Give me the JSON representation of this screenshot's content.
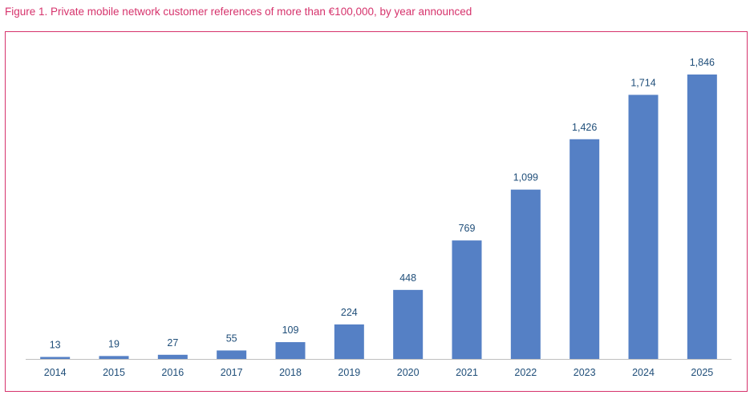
{
  "figure": {
    "title": "Figure 1. Private mobile network customer references of more than €100,000, by year announced"
  },
  "colors": {
    "bar": "#5580c5",
    "accent": "#d6336c",
    "label": "#1f4e79",
    "axis": "#bfbfbf"
  },
  "chart_data": {
    "type": "bar",
    "title": "Figure 1. Private mobile network customer references of more than €100,000, by year announced",
    "categories": [
      "2014",
      "2015",
      "2016",
      "2017",
      "2018",
      "2019",
      "2020",
      "2021",
      "2022",
      "2023",
      "2024",
      "2025"
    ],
    "values": [
      13,
      19,
      27,
      55,
      109,
      224,
      448,
      769,
      1099,
      1426,
      1714,
      1846
    ],
    "value_labels": [
      "13",
      "19",
      "27",
      "55",
      "109",
      "224",
      "448",
      "769",
      "1,099",
      "1,426",
      "1,714",
      "1,846"
    ],
    "ylim": [
      0,
      1846
    ],
    "grid": false,
    "legend": "none"
  }
}
